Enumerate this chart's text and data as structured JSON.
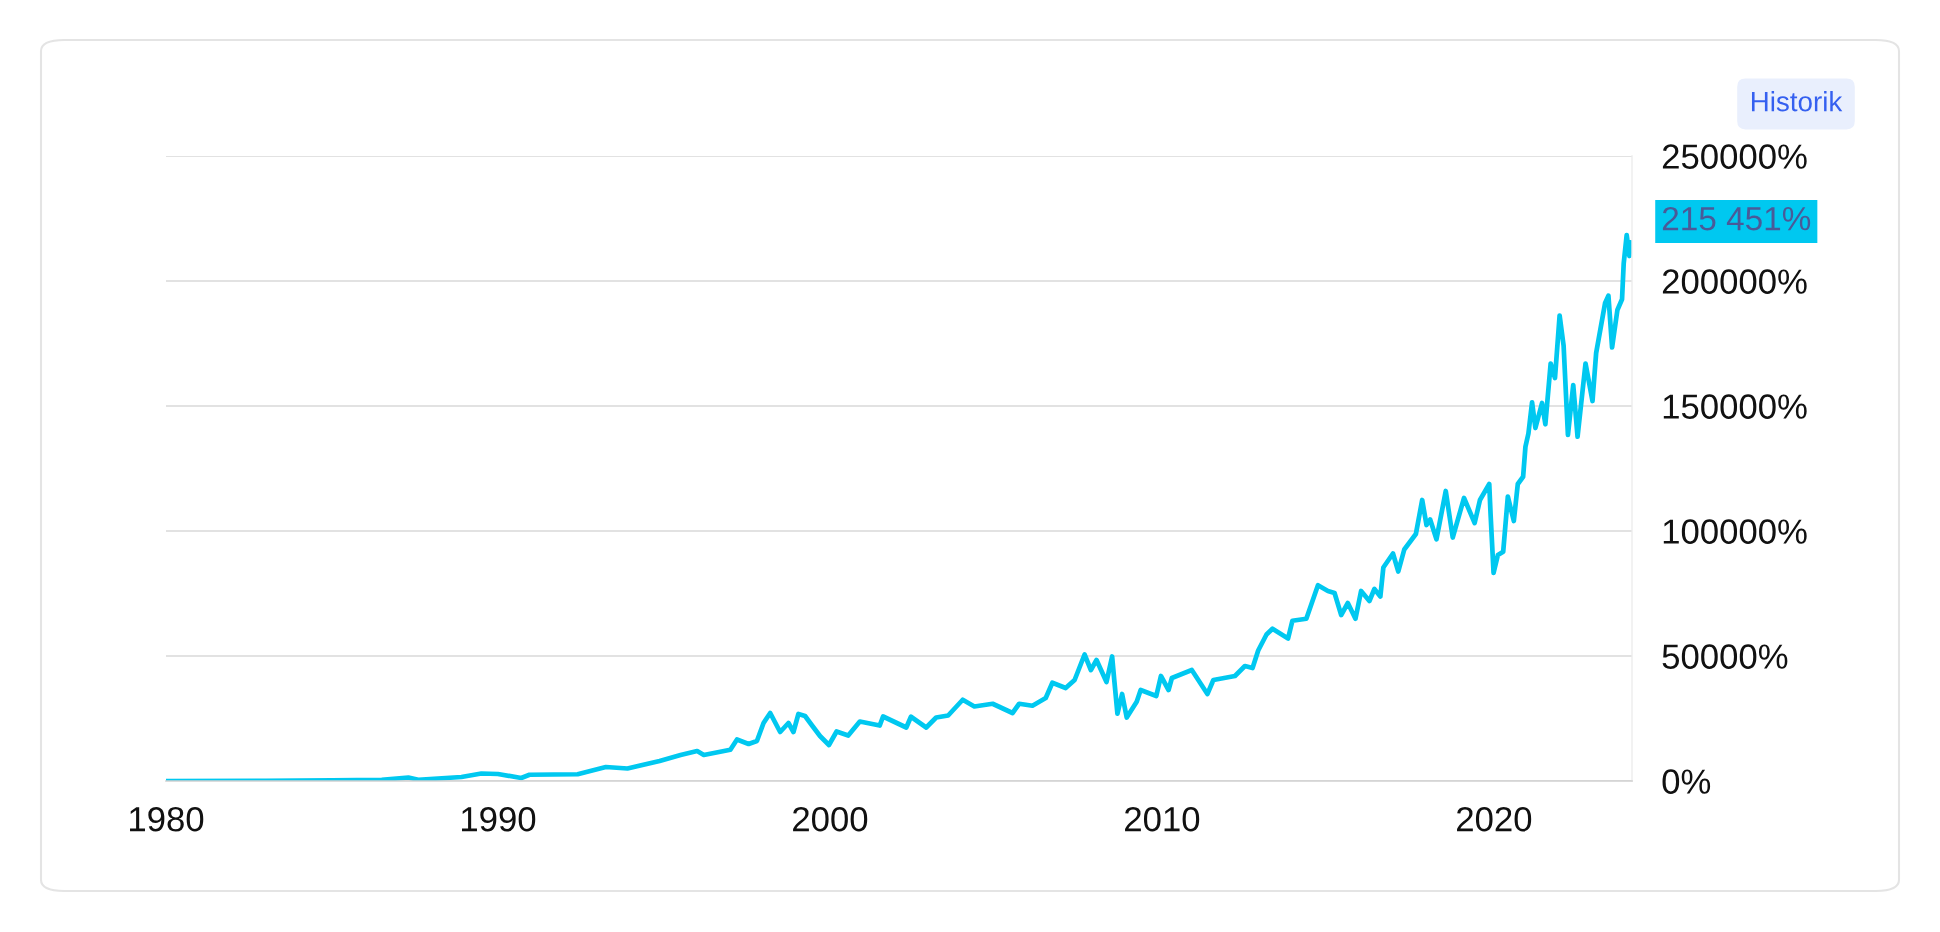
{
  "chart_data": {
    "type": "line",
    "color": "#00c8f0",
    "x": [
      1980.0,
      1983.0,
      1985.0,
      1986.5,
      1987.3,
      1987.6,
      1988.9,
      1989.5,
      1990.0,
      1990.7,
      1990.95,
      1992.4,
      1993.25,
      1993.9,
      1994.87,
      1995.5,
      1996.0,
      1996.2,
      1997.0,
      1997.2,
      1997.55,
      1997.8,
      1998.0,
      1998.2,
      1998.5,
      1998.75,
      1998.9,
      1999.05,
      1999.25,
      1999.45,
      1999.7,
      1999.97,
      2000.2,
      2000.55,
      2000.9,
      2001.5,
      2001.6,
      2002.3,
      2002.44,
      2002.9,
      2003.2,
      2003.56,
      2004.0,
      2004.35,
      2004.9,
      2005.5,
      2005.7,
      2006.1,
      2006.5,
      2006.7,
      2007.1,
      2007.37,
      2007.67,
      2007.86,
      2008.03,
      2008.33,
      2008.5,
      2008.57,
      2008.66,
      2008.8,
      2008.94,
      2009.24,
      2009.36,
      2009.83,
      2009.97,
      2010.2,
      2010.3,
      2010.9,
      2011.37,
      2011.55,
      2012.2,
      2012.5,
      2012.73,
      2012.9,
      2013.15,
      2013.33,
      2013.8,
      2013.93,
      2014.35,
      2014.7,
      2015.0,
      2015.2,
      2015.4,
      2015.6,
      2015.83,
      2016.0,
      2016.25,
      2016.4,
      2016.58,
      2016.67,
      2016.96,
      2017.12,
      2017.3,
      2017.65,
      2017.84,
      2017.97,
      2018.08,
      2018.27,
      2018.55,
      2018.76,
      2019.1,
      2019.42,
      2019.58,
      2019.86,
      2019.9,
      2019.99,
      2020.12,
      2020.28,
      2020.42,
      2020.6,
      2020.72,
      2020.88,
      2020.95,
      2021.04,
      2021.15,
      2021.25,
      2021.45,
      2021.55,
      2021.71,
      2021.84,
      2021.98,
      2022.1,
      2022.23,
      2022.39,
      2022.52,
      2022.76,
      2022.97,
      2023.08,
      2023.35,
      2023.45,
      2023.56,
      2023.72,
      2023.86,
      2023.91,
      2024.0,
      2024.08,
      2024.12
    ],
    "values": [
      0,
      100,
      300,
      500,
      1400,
      500,
      1600,
      3000,
      2800,
      1200,
      2500,
      2700,
      5600,
      5000,
      8000,
      10400,
      12000,
      10400,
      12500,
      16600,
      14800,
      16000,
      23200,
      27200,
      19600,
      23200,
      19600,
      26800,
      26000,
      22400,
      18000,
      14400,
      19800,
      18200,
      23800,
      22200,
      25800,
      21400,
      25700,
      21400,
      25400,
      26200,
      32500,
      29800,
      30900,
      27200,
      30900,
      30100,
      33200,
      39300,
      37200,
      40400,
      50600,
      44400,
      48400,
      39600,
      49800,
      39600,
      26900,
      34800,
      25400,
      31700,
      36400,
      34000,
      42000,
      36400,
      41200,
      44400,
      34800,
      40400,
      42000,
      46000,
      45200,
      52200,
      58600,
      60900,
      57000,
      64100,
      64900,
      78300,
      76000,
      75200,
      66400,
      71200,
      64900,
      76000,
      72000,
      76800,
      73800,
      85400,
      91000,
      83800,
      92600,
      98800,
      112400,
      102400,
      104600,
      96700,
      116000,
      97400,
      113200,
      103200,
      112400,
      118800,
      106700,
      83200,
      90400,
      91700,
      113800,
      104000,
      118800,
      121700,
      133700,
      139000,
      151500,
      141200,
      151200,
      142700,
      167000,
      161200,
      186200,
      174100,
      138400,
      158400,
      137700,
      167000,
      152000,
      171200,
      191200,
      194100,
      173400,
      188400,
      192700,
      207000,
      218400,
      210000,
      215451
    ],
    "xlim": [
      1980,
      2024.16
    ],
    "xticks": [
      1980,
      1990,
      2000,
      2010,
      2020
    ],
    "ylim": [
      0,
      250000
    ],
    "yticks": [
      {
        "value": 0,
        "label": "0%"
      },
      {
        "value": 50000,
        "label": "50000%"
      },
      {
        "value": 100000,
        "label": "100000%"
      },
      {
        "value": 150000,
        "label": "150000%"
      },
      {
        "value": 200000,
        "label": "200000%"
      },
      {
        "value": 250000,
        "label": "250000%"
      }
    ],
    "grid": "y",
    "line_style": "solid",
    "annotations": [
      "Historik",
      {
        "text": "215 451%",
        "x": 2024.12,
        "y": 215451
      }
    ]
  }
}
